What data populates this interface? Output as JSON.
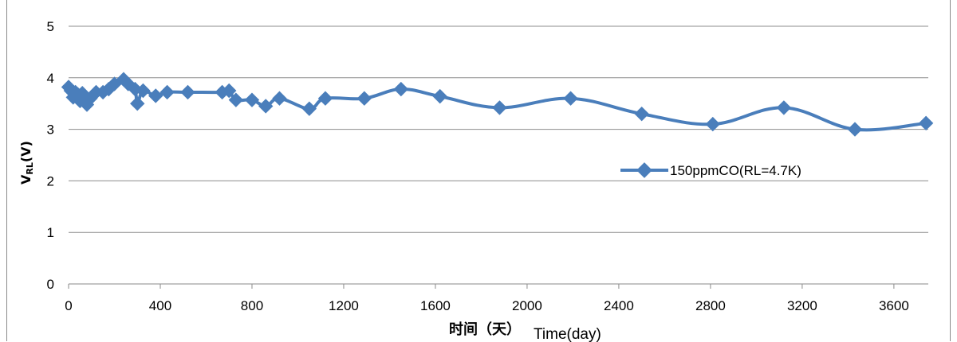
{
  "chart_data": {
    "type": "line",
    "title": "",
    "xlabel_cn": "时间（天）",
    "xlabel_en": "Time(day)",
    "ylabel_main": "V",
    "ylabel_sub": "RL",
    "ylabel_unit": "(V)",
    "xlim": [
      0,
      3750
    ],
    "ylim": [
      0,
      5
    ],
    "x_ticks": [
      0,
      400,
      800,
      1200,
      1600,
      2000,
      2400,
      2800,
      3200,
      3600
    ],
    "y_ticks": [
      0,
      1,
      2,
      3,
      4,
      5
    ],
    "grid": "horizontal",
    "legend_position": "center-right",
    "series_color": "#4a7ebb",
    "series": [
      {
        "name": "150ppmCO(RL=4.7K)",
        "x": [
          0,
          10,
          20,
          30,
          40,
          50,
          60,
          70,
          80,
          95,
          120,
          150,
          175,
          200,
          240,
          260,
          290,
          300,
          325,
          380,
          430,
          520,
          670,
          700,
          730,
          800,
          860,
          920,
          1050,
          1120,
          1290,
          1450,
          1620,
          1880,
          2190,
          2500,
          2810,
          3120,
          3430,
          3740
        ],
        "y": [
          3.82,
          3.75,
          3.62,
          3.72,
          3.68,
          3.55,
          3.7,
          3.62,
          3.48,
          3.6,
          3.72,
          3.72,
          3.78,
          3.88,
          3.97,
          3.88,
          3.78,
          3.5,
          3.75,
          3.65,
          3.72,
          3.72,
          3.72,
          3.75,
          3.57,
          3.57,
          3.45,
          3.6,
          3.4,
          3.6,
          3.6,
          3.78,
          3.64,
          3.42,
          3.6,
          3.3,
          3.1,
          3.42,
          3.0,
          3.12
        ]
      }
    ]
  }
}
